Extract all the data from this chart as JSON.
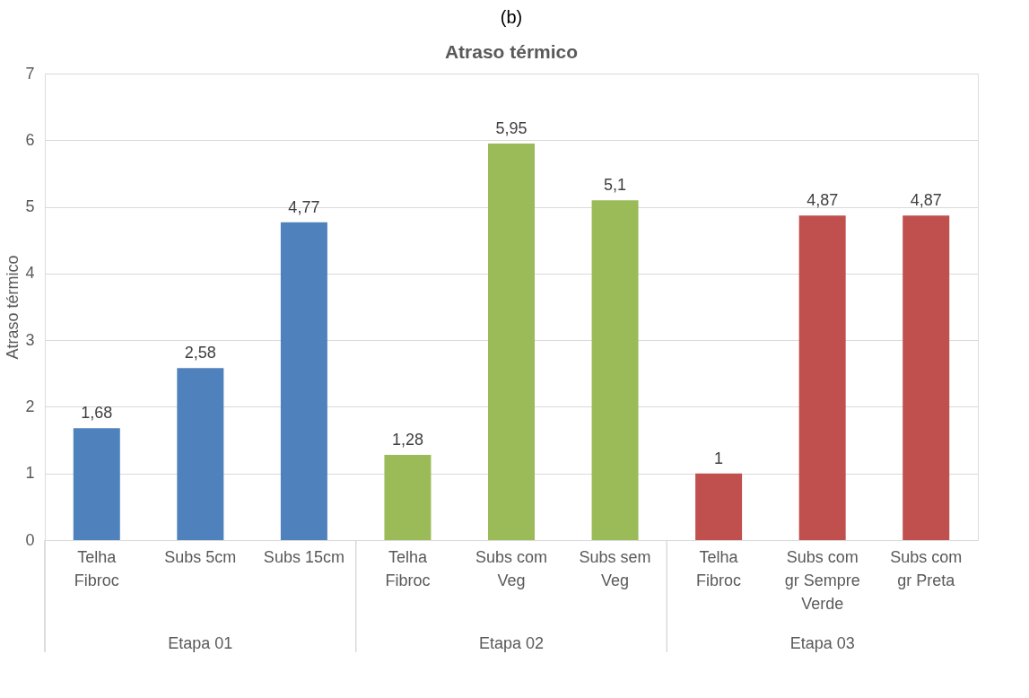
{
  "chart_data": {
    "type": "bar",
    "title": "(b)",
    "subtitle": "Atraso térmico",
    "ylabel": "Atraso térmico",
    "categories": [
      "Telha Fibroc",
      "Subs 5cm",
      "Subs 15cm",
      "Telha Fibroc",
      "Subs com Veg",
      "Subs sem Veg",
      "Telha Fibroc",
      "Subs com gr Sempre Verde",
      "Subs com gr Preta"
    ],
    "values": [
      1.68,
      2.58,
      4.77,
      1.28,
      5.95,
      5.1,
      1,
      4.87,
      4.87
    ],
    "value_labels": [
      "1,68",
      "2,58",
      "4,77",
      "1,28",
      "5,95",
      "5,1",
      "1",
      "4,87",
      "4,87"
    ],
    "colors": [
      "#4f81bd",
      "#4f81bd",
      "#4f81bd",
      "#9bbb59",
      "#9bbb59",
      "#9bbb59",
      "#c0504d",
      "#c0504d",
      "#c0504d"
    ],
    "annotations": [
      "Etapa 01",
      "Etapa 02",
      "Etapa 03"
    ],
    "ylim": [
      0,
      7
    ],
    "yticks": [
      0,
      1,
      2,
      3,
      4,
      5,
      6,
      7
    ],
    "grid": "y",
    "legend": false
  }
}
